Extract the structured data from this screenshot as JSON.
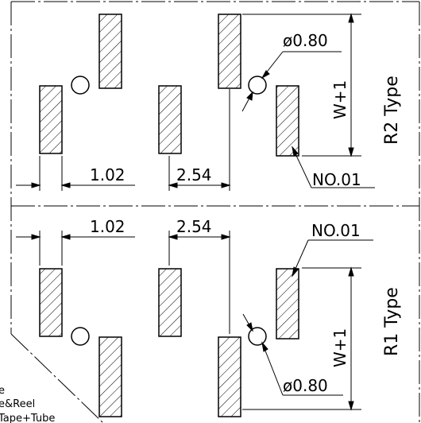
{
  "top_panel": {
    "type_label": "R2 Type",
    "pitch_left": "1.02",
    "pitch_mid": "2.54",
    "hole_dia": "ø0.80",
    "height": "W+1",
    "pin_no": "NO.01"
  },
  "bottom_panel": {
    "type_label": "R1 Type",
    "pitch_left": "1.02",
    "pitch_mid": "2.54",
    "hole_dia": "ø0.80",
    "height": "W+1",
    "pin_no": "NO.01"
  },
  "legend": {
    "line1": "e",
    "line2": "e&Reel",
    "line3": "Tape+Tube"
  }
}
